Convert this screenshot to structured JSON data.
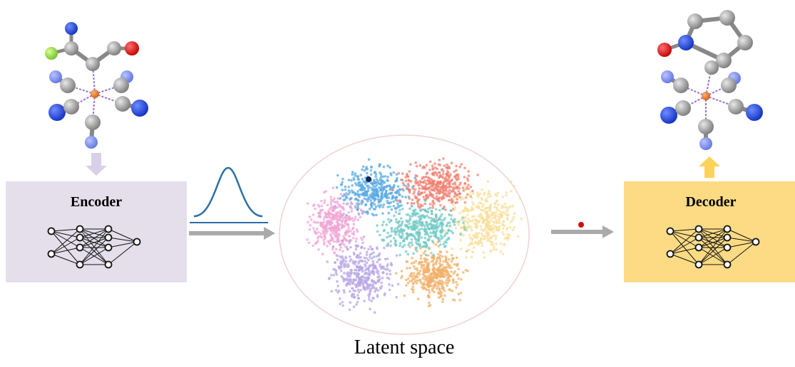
{
  "encoder": {
    "label": "Encoder"
  },
  "decoder": {
    "label": "Decoder"
  },
  "latent_space": {
    "label": "Latent space"
  }
}
